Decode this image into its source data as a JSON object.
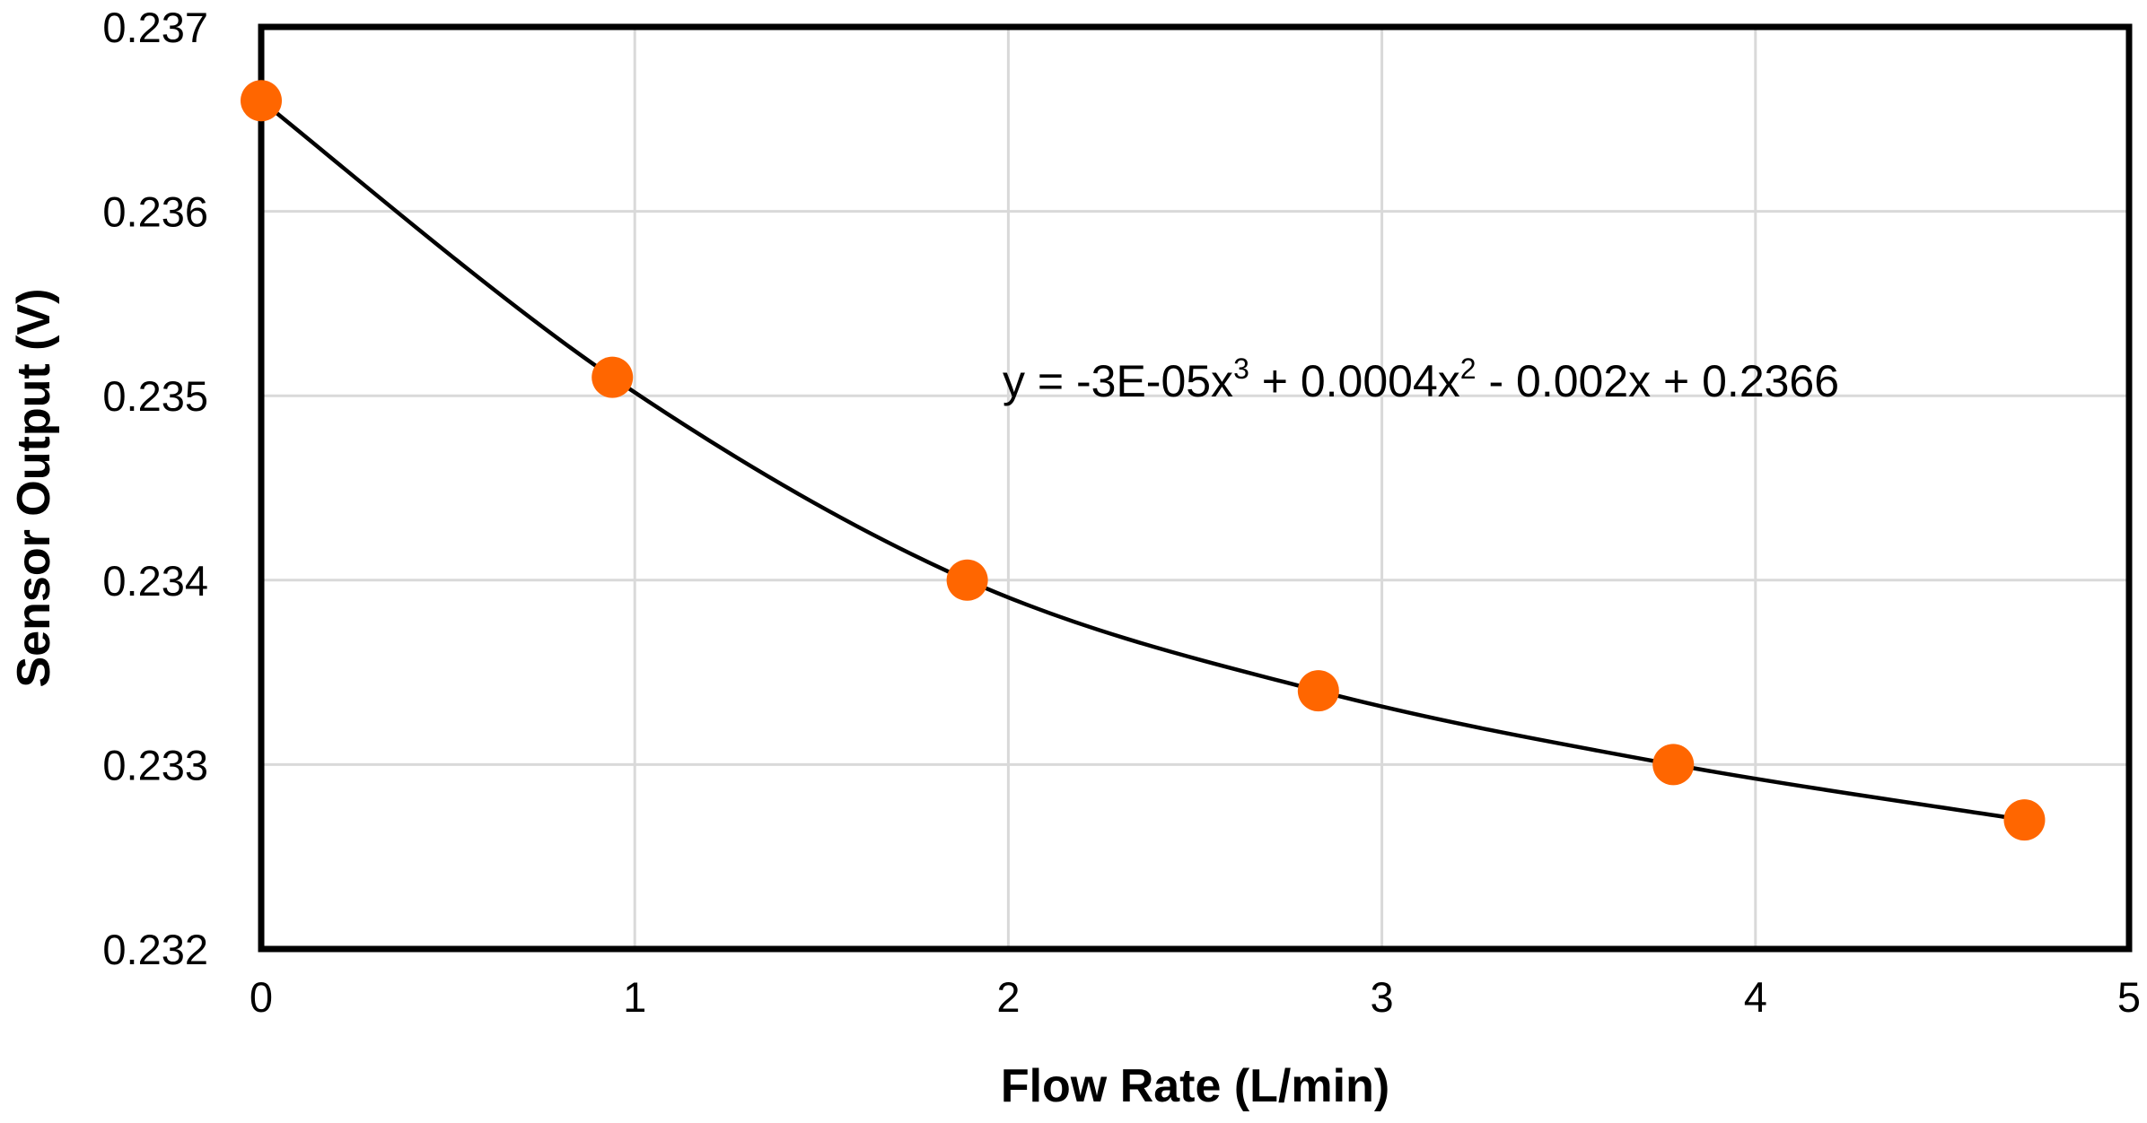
{
  "chart_data": {
    "type": "scatter",
    "xlabel": "Flow Rate (L/min)",
    "ylabel": "Sensor  Output (V)",
    "xlim": [
      0,
      5
    ],
    "ylim": [
      0.232,
      0.237
    ],
    "x_ticks": [
      "0",
      "1",
      "2",
      "3",
      "4",
      "5"
    ],
    "y_ticks": [
      "0.232",
      "0.233",
      "0.234",
      "0.235",
      "0.236",
      "0.237"
    ],
    "grid": true,
    "legend": "none",
    "series": [
      {
        "x": [
          0,
          0.94,
          1.89,
          2.83,
          3.78,
          4.72
        ],
        "y": [
          0.2366,
          0.2351,
          0.234,
          0.2334,
          0.233,
          0.2327
        ],
        "marker": "circle",
        "color": "#FF6600"
      }
    ],
    "trendline": {
      "type": "polynomial",
      "order": 3,
      "coefficients": [
        -3e-05,
        0.0004,
        -0.002,
        0.2366
      ],
      "color": "#000000"
    },
    "equation": {
      "prefix": "y = -3E-05x",
      "exp3": "3",
      "mid": " + 0.0004x",
      "exp2": "2",
      "suffix": " - 0.002x + 0.2366"
    },
    "colors": {
      "frame": "#000000",
      "grid": "#D9D9D9",
      "marker": "#FF6600"
    }
  }
}
